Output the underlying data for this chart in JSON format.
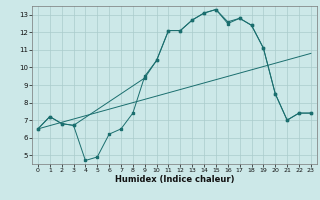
{
  "bg_color": "#cce8e8",
  "grid_color": "#aacccc",
  "line_color": "#1a6e6e",
  "line1_x": [
    0,
    1,
    2,
    3,
    4,
    5,
    6,
    7,
    8,
    9,
    10,
    11,
    12,
    13,
    14,
    15,
    16,
    17,
    18,
    19,
    20,
    21,
    22,
    23
  ],
  "line1_y": [
    6.5,
    7.2,
    6.8,
    6.7,
    4.7,
    4.9,
    6.2,
    6.5,
    7.4,
    9.5,
    10.4,
    12.1,
    12.1,
    12.7,
    13.1,
    13.3,
    12.6,
    12.8,
    12.4,
    11.1,
    8.5,
    7.0,
    7.4,
    7.4
  ],
  "line2_x": [
    0,
    23
  ],
  "line2_y": [
    6.5,
    10.8
  ],
  "line3_x": [
    0,
    1,
    2,
    3,
    9,
    10,
    11,
    12,
    13,
    14,
    15,
    16,
    17,
    18,
    19,
    20,
    21,
    22,
    23
  ],
  "line3_y": [
    6.5,
    7.2,
    6.8,
    6.7,
    9.4,
    10.4,
    12.1,
    12.1,
    12.7,
    13.1,
    13.3,
    12.5,
    12.8,
    12.4,
    11.1,
    8.5,
    7.0,
    7.4,
    7.4
  ],
  "xlabel": "Humidex (Indice chaleur)",
  "ylim": [
    4.5,
    13.5
  ],
  "xlim": [
    -0.5,
    23.5
  ],
  "yticks": [
    5,
    6,
    7,
    8,
    9,
    10,
    11,
    12,
    13
  ],
  "xticks": [
    0,
    1,
    2,
    3,
    4,
    5,
    6,
    7,
    8,
    9,
    10,
    11,
    12,
    13,
    14,
    15,
    16,
    17,
    18,
    19,
    20,
    21,
    22,
    23
  ]
}
